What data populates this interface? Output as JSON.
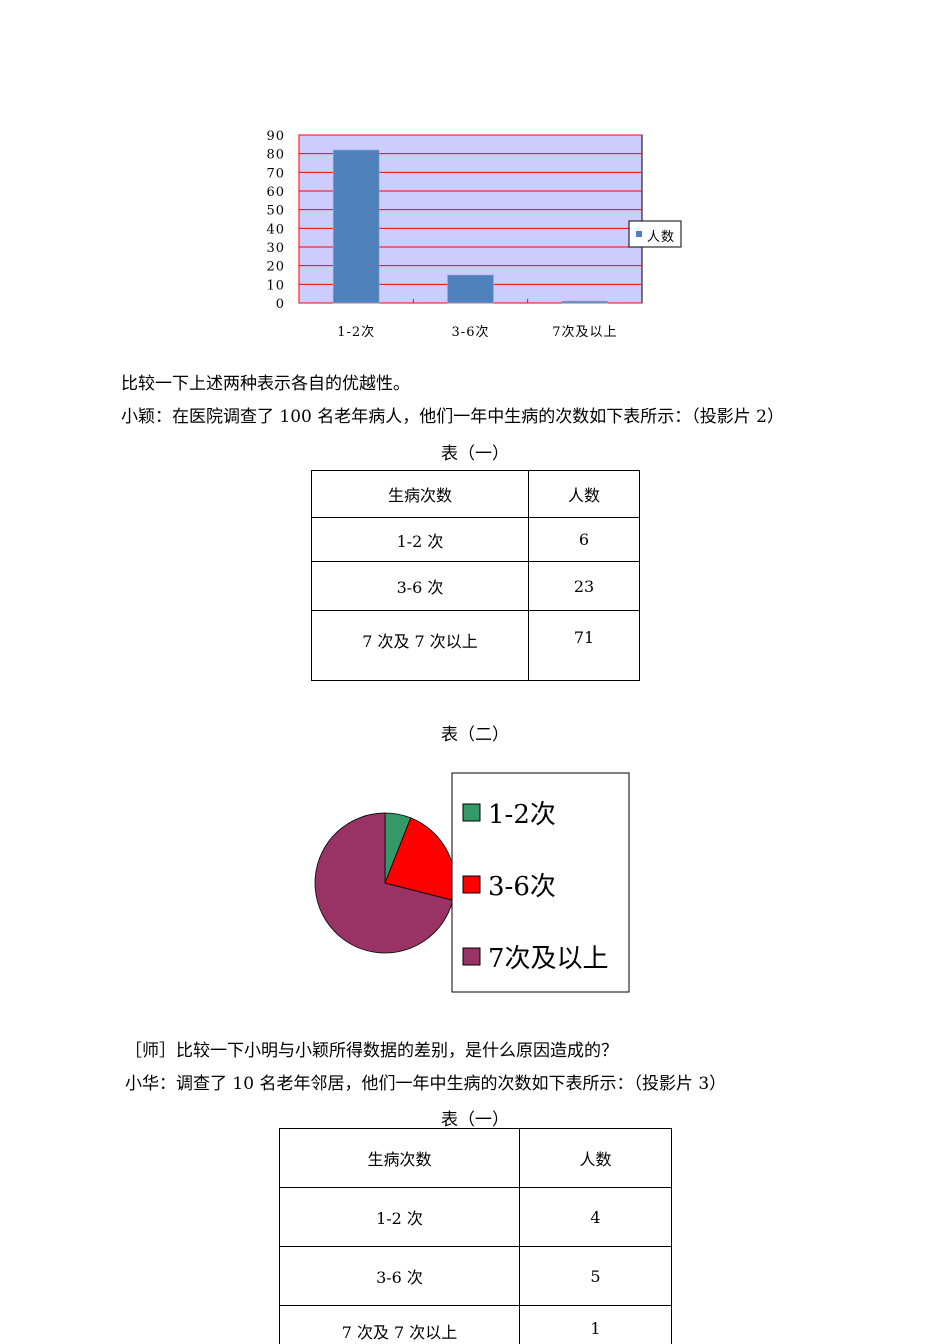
{
  "chart_data": [
    {
      "type": "bar",
      "categories": [
        "1-2次",
        "3-6次",
        "7次及以上"
      ],
      "series": [
        {
          "name": "人数",
          "values": [
            82,
            15,
            1
          ]
        }
      ],
      "ylim": [
        0,
        90
      ],
      "yticks": [
        "0",
        "10",
        "20",
        "30",
        "40",
        "50",
        "60",
        "70",
        "80",
        "90"
      ],
      "grid": true,
      "legend": "right",
      "colors": {
        "bar": "#4f81bd",
        "plot_bg": "#ccccff",
        "grid": "#ff0000"
      }
    },
    {
      "type": "pie",
      "categories": [
        "1-2次",
        "3-6次",
        "7次及以上"
      ],
      "values": [
        6,
        23,
        71
      ],
      "legend": "right",
      "colors": [
        "#339966",
        "#ff0000",
        "#993366"
      ]
    }
  ],
  "text": {
    "p1": "比较一下上述两种表示各自的优越性。",
    "p2": "小颖：在医院调查了 100 名老年病人，他们一年中生病的次数如下表所示：（投影片 2）",
    "cap1": "表（一）",
    "cap2": "表（二）",
    "p3": "［师］比较一下小明与小颖所得数据的差别，是什么原因造成的？",
    "p4": "小华：调查了 10 名老年邻居，他们一年中生病的次数如下表所示：（投影片 3）",
    "cap3": "表（一）"
  },
  "table1": {
    "headers": [
      "生病次数",
      "人数"
    ],
    "rows": [
      [
        "1-2 次",
        "6"
      ],
      [
        "3-6 次",
        "23"
      ],
      [
        "7 次及 7 次以上",
        "71"
      ]
    ]
  },
  "table2": {
    "headers": [
      "生病次数",
      "人数"
    ],
    "rows": [
      [
        "1-2 次",
        "4"
      ],
      [
        "3-6 次",
        "5"
      ],
      [
        "7 次及 7 次以上",
        "1"
      ]
    ]
  }
}
